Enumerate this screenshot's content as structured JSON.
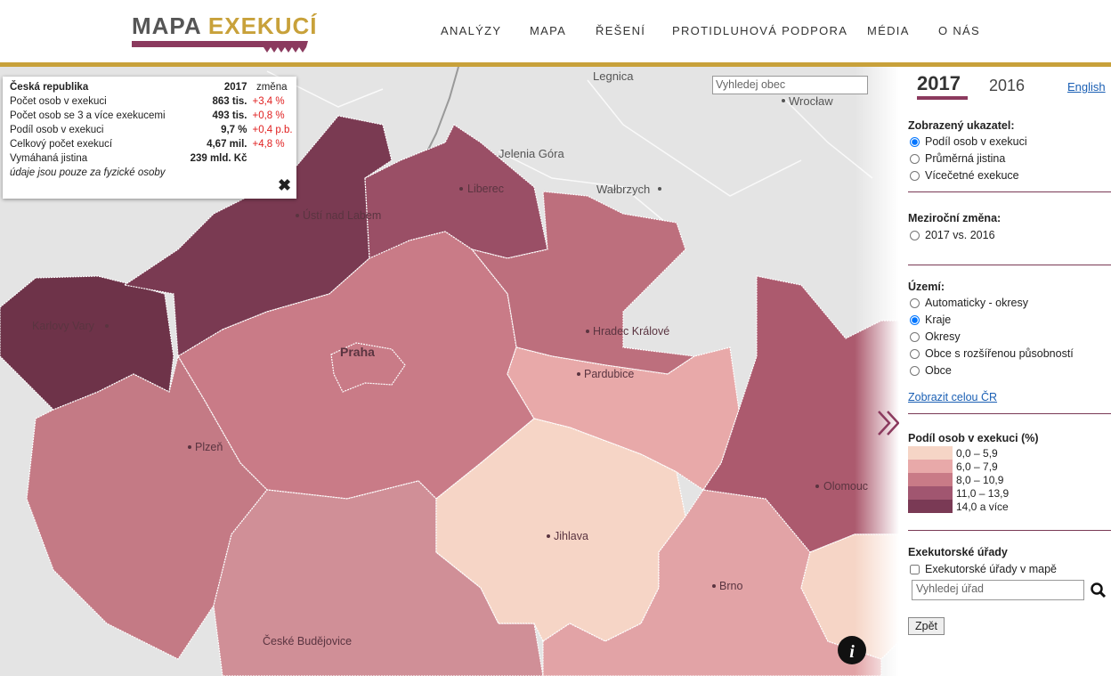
{
  "header": {
    "logo_main": "MAPA",
    "logo_accent": "EXEKUCÍ",
    "nav": [
      "ANALÝZY",
      "MAPA",
      "ŘEŠENÍ",
      "PROTIDLUHOVÁ PODPORA",
      "MÉDIA",
      "O NÁS"
    ]
  },
  "map": {
    "search_placeholder": "Vyhledej obec",
    "foreign_places": [
      "Legnica",
      "Wrocław",
      "Jelenia Góra",
      "Wałbrzych"
    ],
    "regions": [
      "Karlovy Vary",
      "Ústí nad Labem",
      "Liberec",
      "Hradec Králové",
      "Praha",
      "Pardubice",
      "Plzeň",
      "Jihlava",
      "Brno",
      "Olomouc",
      "České Budějovice"
    ]
  },
  "info_box": {
    "title": "Česká republika",
    "year": "2017",
    "change_header": "změna",
    "rows": [
      [
        "Počet osob v exekuci",
        "863 tis.",
        "+3,4 %"
      ],
      [
        "Počet osob se 3 a více exekucemi",
        "493 tis.",
        "+0,8 %"
      ],
      [
        "Podíl osob v exekuci",
        "9,7 %",
        "+0,4 p.b."
      ],
      [
        "Celkový počet exekucí",
        "4,67 mil.",
        "+4,8 %"
      ],
      [
        "Vymáhaná jistina",
        "239 mld. Kč",
        null
      ]
    ],
    "note": "údaje jsou pouze za fyzické osoby"
  },
  "sidebar": {
    "years": [
      "2017",
      "2016"
    ],
    "language_link": "English",
    "indicator": {
      "title": "Zobrazený ukazatel:",
      "options": [
        "Podíl osob v exekuci",
        "Průměrná jistina",
        "Vícečetné exekuce"
      ]
    },
    "change": {
      "title": "Meziroční změna:",
      "options": [
        "2017 vs. 2016"
      ]
    },
    "territory": {
      "title": "Území:",
      "options": [
        "Automaticky - okresy",
        "Kraje",
        "Okresy",
        "Obce s rozšířenou působností",
        "Obce"
      ]
    },
    "show_all_link": "Zobrazit celou ČR",
    "legend": {
      "title": "Podíl osob v exekuci (%)",
      "items": [
        {
          "label": "0,0 – 5,9",
          "color": "#f6d5c6"
        },
        {
          "label": "6,0 – 7,9",
          "color": "#e8a9a9"
        },
        {
          "label": "8,0 – 10,9",
          "color": "#c97b87"
        },
        {
          "label": "11,0 – 13,9",
          "color": "#a15670"
        },
        {
          "label": "14,0 a více",
          "color": "#7a3a55"
        }
      ]
    },
    "bailiffs": {
      "title": "Exekutorské úřady",
      "checkbox": "Exekutorské úřady v mapě",
      "search_placeholder": "Vyhledej úřad"
    },
    "back_button": "Zpět"
  }
}
